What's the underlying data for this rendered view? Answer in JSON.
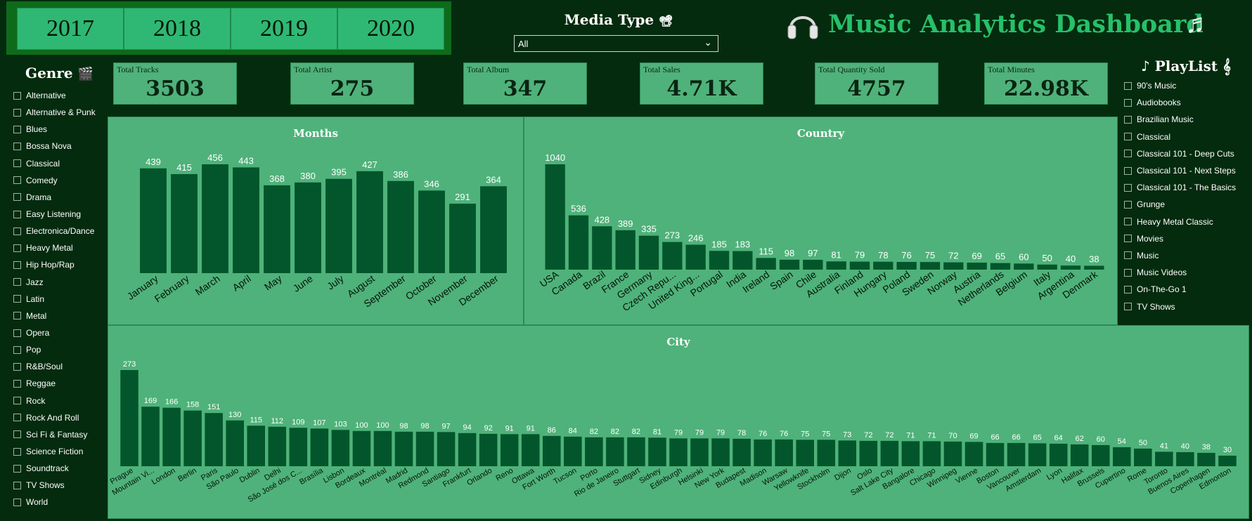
{
  "years": [
    "2017",
    "2018",
    "2019",
    "2020"
  ],
  "media_type": {
    "title": "Media Type",
    "icon": "film-projector-icon",
    "selected": "All"
  },
  "dashboard_title": "Music Analytics Dashboard",
  "genre": {
    "title": "Genre",
    "icon": "clapper-board-icon",
    "items": [
      "Alternative",
      "Alternative & Punk",
      "Blues",
      "Bossa Nova",
      "Classical",
      "Comedy",
      "Drama",
      "Easy Listening",
      "Electronica/Dance",
      "Heavy Metal",
      "Hip Hop/Rap",
      "Jazz",
      "Latin",
      "Metal",
      "Opera",
      "Pop",
      "R&B/Soul",
      "Reggae",
      "Rock",
      "Rock And Roll",
      "Sci Fi & Fantasy",
      "Science Fiction",
      "Soundtrack",
      "TV Shows",
      "World"
    ]
  },
  "playlist": {
    "title": "♪ PlayList 𝄞",
    "items": [
      "90's Music",
      "Audiobooks",
      "Brazilian Music",
      "Classical",
      "Classical 101 - Deep Cuts",
      "Classical 101 - Next Steps",
      "Classical 101 - The Basics",
      "Grunge",
      "Heavy Metal Classic",
      "Movies",
      "Music",
      "Music Videos",
      "On-The-Go 1",
      "TV Shows"
    ]
  },
  "kpis": [
    {
      "label": "Total Tracks",
      "value": "3503"
    },
    {
      "label": "Total Artist",
      "value": "275"
    },
    {
      "label": "Total Album",
      "value": "347"
    },
    {
      "label": "Total Sales",
      "value": "4.71K"
    },
    {
      "label": "Total Quantity Sold",
      "value": "4757"
    },
    {
      "label": "Total Minutes",
      "value": "22.98K"
    }
  ],
  "colors": {
    "background": "#042b0e",
    "panel": "#4fb27a",
    "bar": "#03562b",
    "accent": "#27c06a",
    "year_button": "#2fb873"
  },
  "chart_data": [
    {
      "type": "bar",
      "title": "Months",
      "categories": [
        "January",
        "February",
        "March",
        "April",
        "May",
        "June",
        "July",
        "August",
        "September",
        "October",
        "November",
        "December"
      ],
      "values": [
        439,
        415,
        456,
        443,
        368,
        380,
        395,
        427,
        386,
        346,
        291,
        364
      ],
      "ylim": [
        0,
        456
      ]
    },
    {
      "type": "bar",
      "title": "Country",
      "categories": [
        "USA",
        "Canada",
        "Brazil",
        "France",
        "Germany",
        "Czech Repu...",
        "United King...",
        "Portugal",
        "India",
        "Ireland",
        "Spain",
        "Chile",
        "Australia",
        "Finland",
        "Hungary",
        "Poland",
        "Sweden",
        "Norway",
        "Austria",
        "Netherlands",
        "Belgium",
        "Italy",
        "Argentina",
        "Denmark"
      ],
      "values": [
        1040,
        536,
        428,
        389,
        335,
        273,
        246,
        185,
        183,
        115,
        98,
        97,
        81,
        79,
        78,
        76,
        75,
        72,
        69,
        65,
        60,
        50,
        40,
        38
      ],
      "ylim": [
        0,
        1040
      ]
    },
    {
      "type": "bar",
      "title": "City",
      "categories": [
        "Prague",
        "Mountain Vi...",
        "London",
        "Berlin",
        "Paris",
        "São Paulo",
        "Dublin",
        "Delhi",
        "São José dos C...",
        "Brasília",
        "Lisbon",
        "Bordeaux",
        "Montréal",
        "Madrid",
        "Redmond",
        "Santiago",
        "Frankfurt",
        "Orlando",
        "Reno",
        "Ottawa",
        "Fort Worth",
        "Tucson",
        "Porto",
        "Rio de Janeiro",
        "Stuttgart",
        "Sidney",
        "Edinburgh",
        "Helsinki",
        "New York",
        "Budapest",
        "Madison",
        "Warsaw",
        "Yellowknife",
        "Stockholm",
        "Dijon",
        "Oslo",
        "Salt Lake City",
        "Bangalore",
        "Chicago",
        "Winnipeg",
        "Vienne",
        "Boston",
        "Vancouver",
        "Amsterdam",
        "Lyon",
        "Halifax",
        "Brussels",
        "Cupertino",
        "Rome",
        "Toronto",
        "Buenos Aires",
        "Copenhagen",
        "Edmonton"
      ],
      "values": [
        273,
        169,
        166,
        158,
        151,
        130,
        115,
        112,
        109,
        107,
        103,
        100,
        100,
        98,
        98,
        97,
        94,
        92,
        91,
        91,
        86,
        84,
        82,
        82,
        82,
        81,
        79,
        79,
        79,
        78,
        76,
        76,
        75,
        75,
        73,
        72,
        72,
        71,
        71,
        70,
        69,
        66,
        66,
        65,
        64,
        62,
        60,
        54,
        50,
        41,
        40,
        38,
        30
      ],
      "ylim": [
        0,
        273
      ]
    }
  ]
}
